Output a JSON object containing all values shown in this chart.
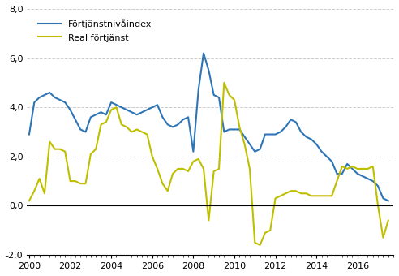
{
  "title": "",
  "line1_label": "Förtjänstnivåindex",
  "line2_label": "Real förtjänst",
  "line1_color": "#2E75B6",
  "line2_color": "#BFBF00",
  "background_color": "#FFFFFF",
  "grid_color": "#CCCCCC",
  "ylim": [
    -2.0,
    8.0
  ],
  "yticks": [
    -2.0,
    0.0,
    2.0,
    4.0,
    6.0,
    8.0
  ],
  "xticks": [
    2000,
    2002,
    2004,
    2006,
    2008,
    2010,
    2012,
    2014,
    2016
  ],
  "line1_x": [
    2000.0,
    2000.25,
    2000.5,
    2000.75,
    2001.0,
    2001.25,
    2001.5,
    2001.75,
    2002.0,
    2002.25,
    2002.5,
    2002.75,
    2003.0,
    2003.25,
    2003.5,
    2003.75,
    2004.0,
    2004.25,
    2004.5,
    2004.75,
    2005.0,
    2005.25,
    2005.5,
    2005.75,
    2006.0,
    2006.25,
    2006.5,
    2006.75,
    2007.0,
    2007.25,
    2007.5,
    2007.75,
    2008.0,
    2008.25,
    2008.5,
    2008.75,
    2009.0,
    2009.25,
    2009.5,
    2009.75,
    2010.0,
    2010.25,
    2010.5,
    2010.75,
    2011.0,
    2011.25,
    2011.5,
    2011.75,
    2012.0,
    2012.25,
    2012.5,
    2012.75,
    2013.0,
    2013.25,
    2013.5,
    2013.75,
    2014.0,
    2014.25,
    2014.5,
    2014.75,
    2015.0,
    2015.25,
    2015.5,
    2015.75,
    2016.0,
    2016.25,
    2016.5,
    2016.75,
    2017.0,
    2017.25,
    2017.5
  ],
  "line1_y": [
    2.9,
    4.2,
    4.4,
    4.5,
    4.6,
    4.4,
    4.3,
    4.2,
    3.9,
    3.5,
    3.1,
    3.0,
    3.6,
    3.7,
    3.8,
    3.7,
    4.2,
    4.1,
    4.0,
    3.9,
    3.8,
    3.7,
    3.8,
    3.9,
    4.0,
    4.1,
    3.6,
    3.3,
    3.2,
    3.3,
    3.5,
    3.6,
    2.2,
    4.7,
    6.2,
    5.5,
    4.5,
    4.4,
    3.0,
    3.1,
    3.1,
    3.1,
    2.8,
    2.5,
    2.2,
    2.3,
    2.9,
    2.9,
    2.9,
    3.0,
    3.2,
    3.5,
    3.4,
    3.0,
    2.8,
    2.7,
    2.5,
    2.2,
    2.0,
    1.8,
    1.3,
    1.3,
    1.7,
    1.5,
    1.3,
    1.2,
    1.1,
    1.0,
    0.8,
    0.3,
    0.2
  ],
  "line2_x": [
    2000.0,
    2000.25,
    2000.5,
    2000.75,
    2001.0,
    2001.25,
    2001.5,
    2001.75,
    2002.0,
    2002.25,
    2002.5,
    2002.75,
    2003.0,
    2003.25,
    2003.5,
    2003.75,
    2004.0,
    2004.25,
    2004.5,
    2004.75,
    2005.0,
    2005.25,
    2005.5,
    2005.75,
    2006.0,
    2006.25,
    2006.5,
    2006.75,
    2007.0,
    2007.25,
    2007.5,
    2007.75,
    2008.0,
    2008.25,
    2008.5,
    2008.75,
    2009.0,
    2009.25,
    2009.5,
    2009.75,
    2010.0,
    2010.25,
    2010.5,
    2010.75,
    2011.0,
    2011.25,
    2011.5,
    2011.75,
    2012.0,
    2012.25,
    2012.5,
    2012.75,
    2013.0,
    2013.25,
    2013.5,
    2013.75,
    2014.0,
    2014.25,
    2014.5,
    2014.75,
    2015.0,
    2015.25,
    2015.5,
    2015.75,
    2016.0,
    2016.25,
    2016.5,
    2016.75,
    2017.0,
    2017.25,
    2017.5
  ],
  "line2_y": [
    0.2,
    0.6,
    1.1,
    0.5,
    2.6,
    2.3,
    2.3,
    2.2,
    1.0,
    1.0,
    0.9,
    0.9,
    2.1,
    2.3,
    3.3,
    3.4,
    3.9,
    4.0,
    3.3,
    3.2,
    3.0,
    3.1,
    3.0,
    2.9,
    2.0,
    1.5,
    0.9,
    0.6,
    1.3,
    1.5,
    1.5,
    1.4,
    1.8,
    1.9,
    1.5,
    -0.6,
    1.4,
    1.5,
    5.0,
    4.5,
    4.3,
    3.2,
    2.5,
    1.5,
    -1.5,
    -1.6,
    -1.1,
    -1.0,
    0.3,
    0.4,
    0.5,
    0.6,
    0.6,
    0.5,
    0.5,
    0.4,
    0.4,
    0.4,
    0.4,
    0.4,
    1.0,
    1.6,
    1.5,
    1.6,
    1.5,
    1.5,
    1.5,
    1.6,
    0.0,
    -1.3,
    -0.6
  ]
}
